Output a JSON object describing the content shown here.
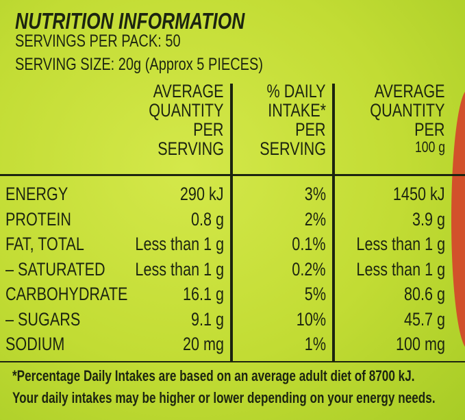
{
  "header": {
    "title": "NUTRITION INFORMATION",
    "servings": "SERVINGS PER PACK: 50",
    "serving_size": "SERVING SIZE: 20g (Approx 5 PIECES)"
  },
  "table": {
    "columns": [
      [
        "AVERAGE",
        "QUANTITY",
        "PER",
        "SERVING"
      ],
      [
        "% DAILY",
        "INTAKE*",
        "PER",
        "SERVING"
      ],
      [
        "AVERAGE",
        "QUANTITY",
        "PER",
        "100 g"
      ]
    ],
    "rows": [
      [
        "ENERGY",
        "290 kJ",
        "3%",
        "1450 kJ"
      ],
      [
        "PROTEIN",
        "0.8 g",
        "2%",
        "3.9 g"
      ],
      [
        "FAT, TOTAL",
        "Less than 1 g",
        "0.1%",
        "Less than 1 g"
      ],
      [
        "– SATURATED",
        "Less than 1 g",
        "0.2%",
        "Less than 1 g"
      ],
      [
        "CARBOHYDRATE",
        "16.1 g",
        "5%",
        "80.6 g"
      ],
      [
        "– SUGARS",
        "9.1 g",
        "10%",
        "45.7 g"
      ],
      [
        "SODIUM",
        "20 mg",
        "1%",
        "100 mg"
      ]
    ]
  },
  "footnote": [
    "*Percentage Daily Intakes are based on an average adult diet of 8700 kJ.",
    "Your daily intakes may be higher or lower depending on your energy needs."
  ]
}
